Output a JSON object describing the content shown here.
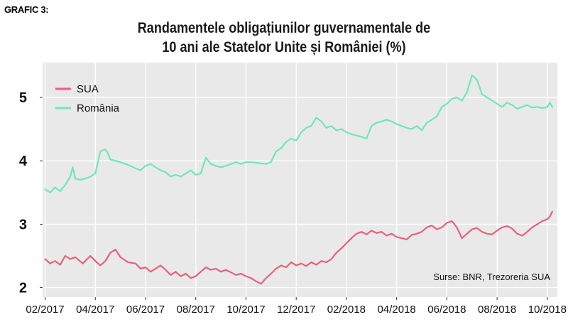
{
  "header": {
    "tag": "GRAFIC 3:",
    "title_line1": "Randamentele obligațiunilor guvernamentale de",
    "title_line2": "10 ani ale Statelor Unite și României (%)"
  },
  "source": "Surse: BNR, Trezoreria SUA",
  "chart_data": {
    "type": "line",
    "title": "Randamentele obligațiunilor guvernamentale de 10 ani ale Statelor Unite și României (%)",
    "xlabel": "",
    "ylabel": "",
    "xlim": [
      -0.1,
      20.4
    ],
    "ylim": [
      1.85,
      5.55
    ],
    "grid": true,
    "legend": "top-left",
    "x_ticks": [
      "02/2017",
      "04/2017",
      "06/2017",
      "08/2017",
      "10/2017",
      "12/2017",
      "02/2018",
      "04/2018",
      "06/2018",
      "08/2018",
      "10/2018"
    ],
    "y_ticks": [
      2,
      3,
      4,
      5
    ],
    "series": [
      {
        "name": "SUA",
        "color": "#e8607a",
        "x": [
          0,
          0.2,
          0.4,
          0.6,
          0.8,
          1.0,
          1.2,
          1.5,
          1.8,
          2.0,
          2.2,
          2.4,
          2.6,
          2.8,
          3.0,
          3.3,
          3.6,
          3.8,
          4.0,
          4.2,
          4.4,
          4.6,
          4.8,
          5.0,
          5.2,
          5.4,
          5.6,
          5.8,
          6.0,
          6.2,
          6.4,
          6.6,
          6.8,
          7.0,
          7.2,
          7.4,
          7.6,
          7.8,
          8.0,
          8.2,
          8.4,
          8.6,
          8.8,
          9.0,
          9.2,
          9.4,
          9.6,
          9.8,
          10.0,
          10.2,
          10.4,
          10.6,
          10.8,
          11.0,
          11.2,
          11.4,
          11.6,
          11.8,
          12.0,
          12.2,
          12.4,
          12.6,
          12.8,
          13.0,
          13.2,
          13.4,
          13.6,
          13.8,
          14.0,
          14.2,
          14.4,
          14.6,
          14.8,
          15.0,
          15.2,
          15.4,
          15.6,
          15.8,
          16.0,
          16.2,
          16.4,
          16.6,
          16.8,
          17.0,
          17.2,
          17.4,
          17.6,
          17.8,
          18.0,
          18.2,
          18.4,
          18.6,
          18.8,
          19.0,
          19.2,
          19.4,
          19.6,
          19.8,
          20.0,
          20.1,
          20.2
        ],
        "values": [
          2.45,
          2.38,
          2.42,
          2.36,
          2.5,
          2.45,
          2.48,
          2.38,
          2.5,
          2.42,
          2.35,
          2.42,
          2.55,
          2.6,
          2.48,
          2.4,
          2.38,
          2.3,
          2.32,
          2.25,
          2.3,
          2.35,
          2.28,
          2.2,
          2.25,
          2.18,
          2.22,
          2.15,
          2.18,
          2.25,
          2.32,
          2.28,
          2.3,
          2.25,
          2.28,
          2.24,
          2.2,
          2.22,
          2.18,
          2.15,
          2.1,
          2.06,
          2.15,
          2.22,
          2.3,
          2.35,
          2.32,
          2.4,
          2.35,
          2.38,
          2.34,
          2.4,
          2.36,
          2.42,
          2.4,
          2.45,
          2.55,
          2.62,
          2.7,
          2.78,
          2.85,
          2.88,
          2.84,
          2.9,
          2.86,
          2.88,
          2.82,
          2.85,
          2.8,
          2.78,
          2.76,
          2.83,
          2.85,
          2.88,
          2.95,
          2.98,
          2.92,
          2.95,
          3.02,
          3.05,
          2.95,
          2.78,
          2.85,
          2.92,
          2.94,
          2.88,
          2.85,
          2.84,
          2.9,
          2.95,
          2.97,
          2.93,
          2.85,
          2.82,
          2.88,
          2.95,
          3.0,
          3.05,
          3.08,
          3.12,
          3.2
        ]
      },
      {
        "name": "România",
        "color": "#6ee8b4",
        "x": [
          0,
          0.2,
          0.4,
          0.6,
          0.8,
          1.0,
          1.1,
          1.2,
          1.4,
          1.6,
          1.8,
          2.0,
          2.2,
          2.4,
          2.5,
          2.6,
          2.8,
          3.0,
          3.2,
          3.4,
          3.6,
          3.8,
          4.0,
          4.2,
          4.4,
          4.6,
          4.8,
          5.0,
          5.2,
          5.4,
          5.6,
          5.8,
          6.0,
          6.2,
          6.4,
          6.6,
          6.8,
          7.0,
          7.2,
          7.4,
          7.6,
          7.8,
          8.0,
          8.2,
          8.4,
          8.6,
          8.8,
          9.0,
          9.2,
          9.4,
          9.6,
          9.8,
          10.0,
          10.2,
          10.4,
          10.6,
          10.8,
          11.0,
          11.2,
          11.4,
          11.6,
          11.8,
          12.0,
          12.2,
          12.4,
          12.6,
          12.8,
          13.0,
          13.2,
          13.4,
          13.6,
          13.8,
          14.0,
          14.2,
          14.4,
          14.6,
          14.8,
          15.0,
          15.2,
          15.4,
          15.6,
          15.8,
          16.0,
          16.2,
          16.4,
          16.6,
          16.8,
          17.0,
          17.2,
          17.4,
          17.6,
          17.8,
          18.0,
          18.2,
          18.4,
          18.6,
          18.8,
          19.0,
          19.2,
          19.4,
          19.6,
          19.8,
          20.0,
          20.1,
          20.2
        ],
        "values": [
          3.55,
          3.5,
          3.58,
          3.52,
          3.62,
          3.75,
          3.9,
          3.72,
          3.7,
          3.72,
          3.75,
          3.8,
          4.15,
          4.18,
          4.12,
          4.02,
          4.0,
          3.98,
          3.95,
          3.92,
          3.88,
          3.85,
          3.92,
          3.95,
          3.9,
          3.85,
          3.82,
          3.75,
          3.78,
          3.75,
          3.8,
          3.85,
          3.78,
          3.8,
          4.05,
          3.95,
          3.92,
          3.9,
          3.92,
          3.95,
          3.98,
          3.95,
          3.98,
          3.98,
          3.97,
          3.96,
          3.95,
          3.98,
          4.15,
          4.2,
          4.3,
          4.35,
          4.32,
          4.45,
          4.52,
          4.55,
          4.68,
          4.62,
          4.52,
          4.55,
          4.48,
          4.5,
          4.45,
          4.42,
          4.4,
          4.38,
          4.35,
          4.55,
          4.6,
          4.62,
          4.65,
          4.62,
          4.58,
          4.55,
          4.52,
          4.5,
          4.55,
          4.48,
          4.6,
          4.65,
          4.7,
          4.85,
          4.9,
          4.98,
          5.0,
          4.95,
          5.08,
          5.35,
          5.28,
          5.05,
          5.0,
          4.95,
          4.9,
          4.85,
          4.92,
          4.88,
          4.82,
          4.85,
          4.88,
          4.84,
          4.85,
          4.83,
          4.85,
          4.92,
          4.85
        ]
      }
    ]
  }
}
